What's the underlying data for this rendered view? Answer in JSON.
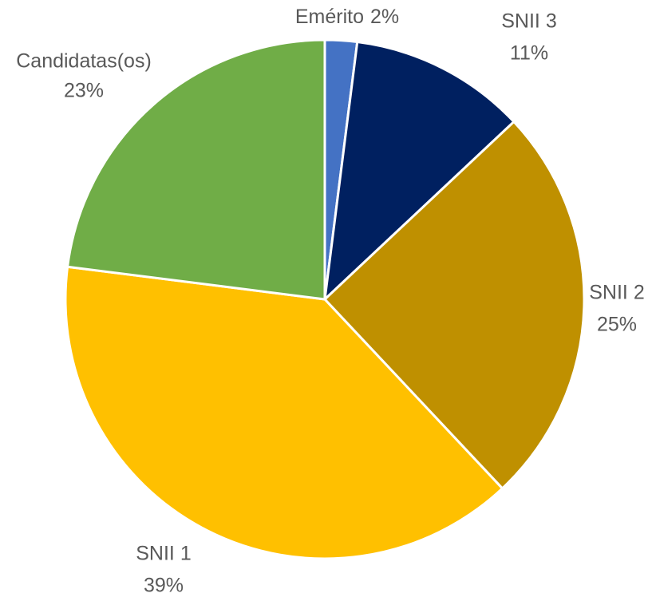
{
  "chart_data": {
    "type": "pie",
    "categories": [
      "Emérito",
      "SNII 3",
      "SNII 2",
      "SNII 1",
      "Candidatas(os)"
    ],
    "values": [
      2,
      11,
      25,
      39,
      23
    ],
    "value_labels": [
      "2%",
      "11%",
      "25%",
      "39%",
      "23%"
    ],
    "colors": [
      "#4472c4",
      "#002060",
      "#bf9000",
      "#ffc000",
      "#70ad47"
    ]
  }
}
